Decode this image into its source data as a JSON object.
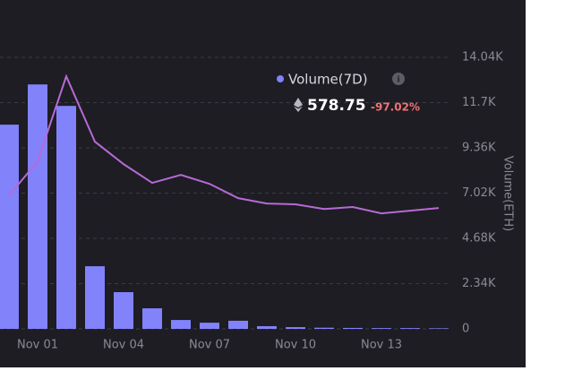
{
  "chart_data": {
    "type": "bar-line",
    "y_axis_label": "Volume(ETH)",
    "legend": {
      "name": "Volume(7D)",
      "value": "578.75",
      "change": "-97.02%"
    },
    "categories": [
      null,
      "Nov 01",
      null,
      null,
      "Nov 04",
      null,
      null,
      "Nov 07",
      null,
      null,
      "Nov 10",
      null,
      null,
      "Nov 13",
      null,
      null
    ],
    "bars": {
      "color": "#8282fb",
      "values": [
        10560,
        12640,
        11530,
        3240,
        1900,
        1065,
        460,
        320,
        420,
        140,
        90,
        60,
        50,
        40,
        40,
        30
      ]
    },
    "line": {
      "color": "#b66ad6",
      "values": [
        6900,
        8660,
        13060,
        9680,
        8520,
        7550,
        7960,
        7500,
        6760,
        6480,
        6440,
        6200,
        6300,
        5970,
        6110,
        6250
      ]
    },
    "ylim": [
      0,
      14040
    ],
    "yticks": [
      0,
      {
        "value": 2340,
        "label": "2.34K"
      },
      {
        "value": 4680,
        "label": "4.68K"
      },
      {
        "value": 7020,
        "label": "7.02K"
      },
      {
        "value": 9360,
        "label": "9.36K"
      },
      {
        "value": 11700,
        "label": "11.7K"
      },
      {
        "value": 14040,
        "label": "14.04K"
      }
    ],
    "grid": true
  }
}
